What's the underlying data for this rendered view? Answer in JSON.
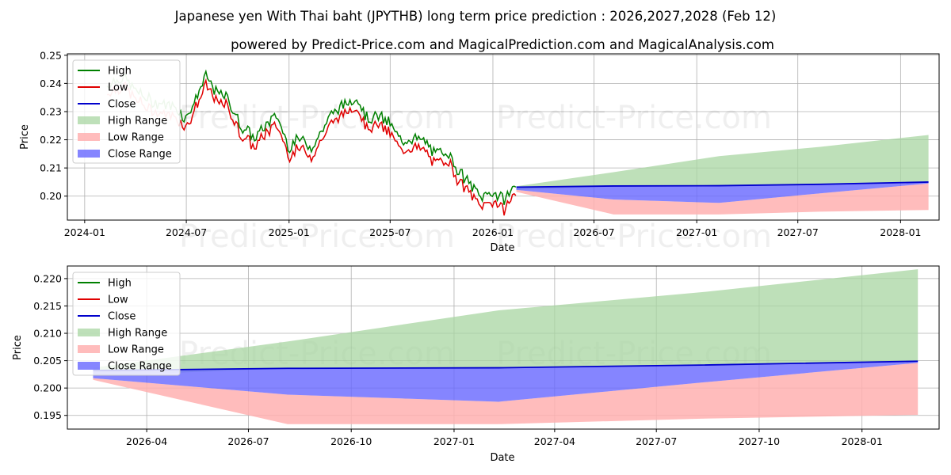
{
  "title": "Japanese yen With Thai baht (JPYTHB) long term price prediction : 2026,2027,2028 (Feb 12)",
  "subtitle": "powered by Predict-Price.com and MagicalPrediction.com and MagicalAnalysis.com",
  "watermark": "Predict-Price.com",
  "colors": {
    "high": "#008000",
    "low": "#e00000",
    "close": "#0000cc",
    "high_range": "#a8d5a2",
    "low_range": "#ffb0b0",
    "close_range": "#6666ff",
    "grid": "#b0b0b0"
  },
  "chart_data": [
    {
      "type": "line",
      "title": "",
      "xlabel": "Date",
      "ylabel": "Price",
      "ylim": [
        0.1915,
        0.2505
      ],
      "xlim": [
        "2023-12-01",
        "2028-03-10"
      ],
      "grid": true,
      "legend_position": "upper-left",
      "yticks": [
        "0.20",
        "0.21",
        "0.22",
        "0.23",
        "0.24",
        "0.25"
      ],
      "ytick_values": [
        0.2,
        0.21,
        0.22,
        0.23,
        0.24,
        0.25
      ],
      "xticks": [
        "2024-01",
        "2024-07",
        "2025-01",
        "2025-07",
        "2026-01",
        "2026-07",
        "2027-01",
        "2027-07",
        "2028-01"
      ],
      "xtick_dates": [
        "2024-01-01",
        "2024-07-01",
        "2025-01-01",
        "2025-07-01",
        "2026-01-01",
        "2026-07-01",
        "2027-01-01",
        "2027-07-01",
        "2028-01-01"
      ],
      "legend": [
        "High",
        "Low",
        "Close",
        "High Range",
        "Low Range",
        "Close Range"
      ],
      "history_anchors": {
        "dates": [
          "2024-02-10",
          "2024-03-10",
          "2024-04-01",
          "2024-05-01",
          "2024-06-10",
          "2024-07-01",
          "2024-07-20",
          "2024-08-05",
          "2024-08-25",
          "2024-09-10",
          "2024-10-05",
          "2024-11-01",
          "2024-11-20",
          "2024-12-10",
          "2025-01-01",
          "2025-01-20",
          "2025-02-10",
          "2025-03-01",
          "2025-03-20",
          "2025-04-10",
          "2025-05-01",
          "2025-05-20",
          "2025-06-10",
          "2025-07-01",
          "2025-07-20",
          "2025-08-10",
          "2025-09-01",
          "2025-09-20",
          "2025-10-10",
          "2025-11-01",
          "2025-11-20",
          "2025-12-10",
          "2026-01-01",
          "2026-01-20",
          "2026-02-12"
        ],
        "close": [
          0.238,
          0.241,
          0.236,
          0.232,
          0.23,
          0.226,
          0.234,
          0.241,
          0.235,
          0.234,
          0.224,
          0.219,
          0.224,
          0.227,
          0.216,
          0.219,
          0.216,
          0.222,
          0.228,
          0.231,
          0.234,
          0.226,
          0.227,
          0.224,
          0.218,
          0.219,
          0.218,
          0.213,
          0.215,
          0.207,
          0.203,
          0.198,
          0.2,
          0.197,
          0.203
        ],
        "high_offset": 0.0018,
        "low_offset": 0.002,
        "faded_until": "2024-06-20"
      },
      "forecast": {
        "dates": [
          "2026-02-12",
          "2026-08-05",
          "2027-02-10",
          "2027-08-10",
          "2028-02-20"
        ],
        "high_range_top": [
          0.2035,
          0.2085,
          0.2142,
          0.2175,
          0.2217
        ],
        "high_range_bottom": [
          0.2022,
          0.2035,
          0.2037,
          0.2042,
          0.205
        ],
        "close": [
          0.2032,
          0.2036,
          0.2037,
          0.2042,
          0.205
        ],
        "close_range_top": [
          0.2032,
          0.2036,
          0.2037,
          0.2042,
          0.205
        ],
        "close_range_bottom": [
          0.2022,
          0.1988,
          0.1976,
          0.201,
          0.2045
        ],
        "low_range_top": [
          0.2022,
          0.1988,
          0.1976,
          0.201,
          0.2045
        ],
        "low_range_bottom": [
          0.2015,
          0.1935,
          0.1935,
          0.1945,
          0.1951
        ]
      }
    },
    {
      "type": "area",
      "title": "",
      "xlabel": "Date",
      "ylabel": "Price",
      "ylim": [
        0.1925,
        0.2223
      ],
      "xlim": [
        "2026-01-20",
        "2028-03-10"
      ],
      "grid": true,
      "legend_position": "upper-left",
      "yticks": [
        "0.195",
        "0.200",
        "0.205",
        "0.210",
        "0.215",
        "0.220"
      ],
      "ytick_values": [
        0.195,
        0.2,
        0.205,
        0.21,
        0.215,
        0.22
      ],
      "xticks": [
        "2026-04",
        "2026-07",
        "2026-10",
        "2027-01",
        "2027-04",
        "2027-07",
        "2027-10",
        "2028-01"
      ],
      "xtick_dates": [
        "2026-04-01",
        "2026-07-01",
        "2026-10-01",
        "2027-01-01",
        "2027-04-01",
        "2027-07-01",
        "2027-10-01",
        "2028-01-01"
      ],
      "legend": [
        "High",
        "Low",
        "Close",
        "High Range",
        "Low Range",
        "Close Range"
      ],
      "forecast": {
        "dates": [
          "2026-02-12",
          "2026-08-05",
          "2027-02-10",
          "2027-08-10",
          "2028-02-20"
        ],
        "high_range_top": [
          0.2037,
          0.2085,
          0.2142,
          0.2175,
          0.2217
        ],
        "high_range_bottom": [
          0.2022,
          0.2036,
          0.2037,
          0.2042,
          0.205
        ],
        "close": [
          0.2032,
          0.2036,
          0.2037,
          0.2042,
          0.2049
        ],
        "close_range_top": [
          0.2032,
          0.2036,
          0.2037,
          0.2042,
          0.2049
        ],
        "close_range_bottom": [
          0.2018,
          0.1988,
          0.1975,
          0.201,
          0.2046
        ],
        "low_range_top": [
          0.2018,
          0.1988,
          0.1975,
          0.201,
          0.2046
        ],
        "low_range_bottom": [
          0.2015,
          0.1934,
          0.1934,
          0.1944,
          0.1951
        ]
      }
    }
  ]
}
